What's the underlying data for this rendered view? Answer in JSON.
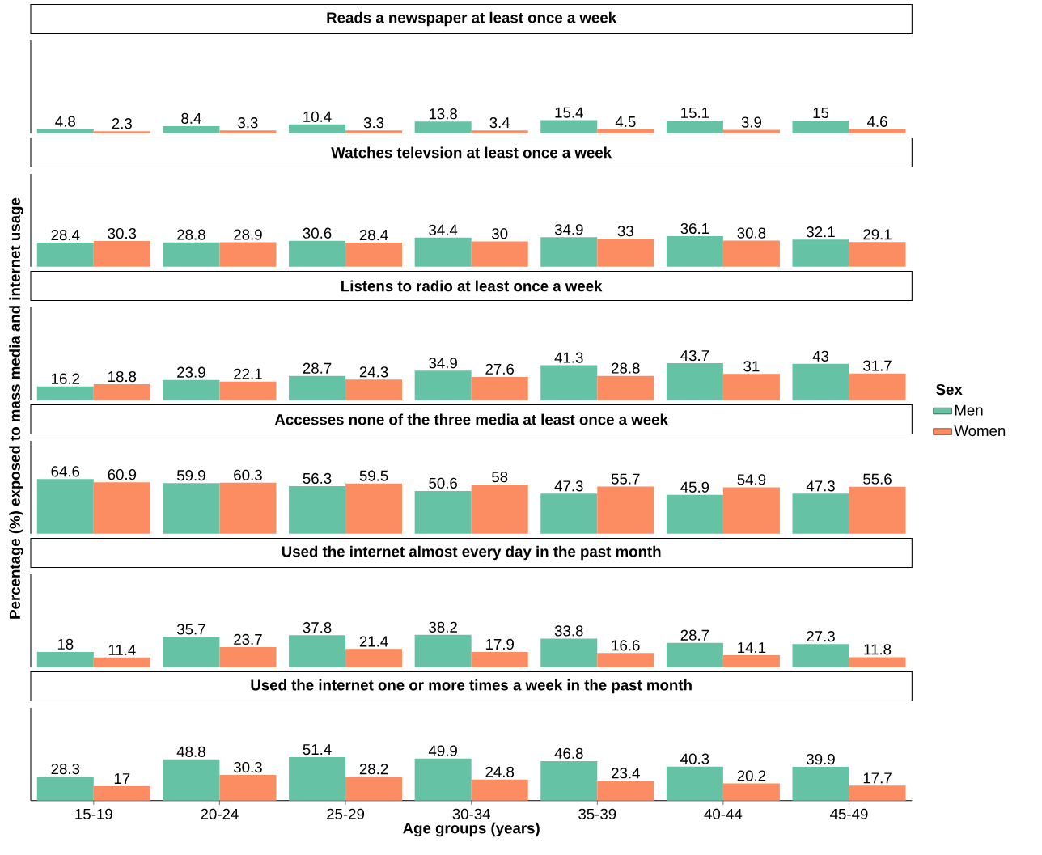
{
  "chart_data": [
    {
      "type": "bar",
      "title": "Reads a newspaper at least once a week",
      "ylabel": "Percentage (%) exposed to mass media and internet usage",
      "categories": [
        null,
        null,
        null,
        null,
        null,
        null,
        null
      ],
      "series": [
        {
          "color": "#66c2a5",
          "values": [
            4.8,
            8.4,
            10.4,
            13.8,
            15.4,
            15.1,
            15
          ]
        },
        {
          "color": "#fc8d62",
          "values": [
            2.3,
            3.3,
            3.3,
            3.4,
            4.5,
            3.9,
            4.6
          ]
        }
      ],
      "ylim": [
        0,
        110
      ],
      "data_labels": true,
      "tick_labels": false
    },
    {
      "type": "bar",
      "title": "Watches televsion at least once a week",
      "categories": [
        null,
        null,
        null,
        null,
        null,
        null,
        null
      ],
      "series": [
        {
          "color": "#66c2a5",
          "values": [
            28.4,
            28.8,
            30.6,
            34.4,
            34.9,
            36.1,
            32.1
          ]
        },
        {
          "color": "#fc8d62",
          "values": [
            30.3,
            28.9,
            28.4,
            30,
            33,
            30.8,
            29.1
          ]
        }
      ],
      "ylim": [
        0,
        110
      ],
      "data_labels": true,
      "tick_labels": false
    },
    {
      "type": "bar",
      "title": "Listens to radio at least once a week",
      "categories": [
        null,
        null,
        null,
        null,
        null,
        null,
        null
      ],
      "series": [
        {
          "color": "#66c2a5",
          "values": [
            16.2,
            23.9,
            28.7,
            34.9,
            41.3,
            43.7,
            43
          ]
        },
        {
          "color": "#fc8d62",
          "values": [
            18.8,
            22.1,
            24.3,
            27.6,
            28.8,
            31,
            31.7
          ]
        }
      ],
      "ylim": [
        0,
        110
      ],
      "data_labels": true,
      "tick_labels": false
    },
    {
      "type": "bar",
      "title": "Accesses none of the three media at least once a week",
      "legend_title": "Sex",
      "legend": "right",
      "categories": [
        null,
        null,
        null,
        null,
        null,
        null,
        null
      ],
      "series": [
        {
          "name": "Men",
          "color": "#66c2a5",
          "values": [
            64.6,
            59.9,
            56.3,
            50.6,
            47.3,
            45.9,
            47.3
          ]
        },
        {
          "name": "Women",
          "color": "#fc8d62",
          "values": [
            60.9,
            60.3,
            59.5,
            58,
            55.7,
            54.9,
            55.6
          ]
        }
      ],
      "ylim": [
        0,
        110
      ],
      "data_labels": true,
      "tick_labels": false
    },
    {
      "type": "bar",
      "title": "Used the internet almost every day in the past month",
      "categories": [
        null,
        null,
        null,
        null,
        null,
        null,
        null
      ],
      "series": [
        {
          "color": "#66c2a5",
          "values": [
            18,
            35.7,
            37.8,
            38.2,
            33.8,
            28.7,
            27.3
          ]
        },
        {
          "color": "#fc8d62",
          "values": [
            11.4,
            23.7,
            21.4,
            17.9,
            16.6,
            14.1,
            11.8
          ]
        }
      ],
      "ylim": [
        0,
        110
      ],
      "data_labels": true,
      "tick_labels": false
    },
    {
      "type": "bar",
      "title": "Used the internet one or more times a week in the past month",
      "xlabel": "Age groups (years)",
      "categories": [
        "15-19",
        "20-24",
        "25-29",
        "30-34",
        "35-39",
        "40-44",
        "45-49"
      ],
      "series": [
        {
          "color": "#66c2a5",
          "values": [
            28.3,
            48.8,
            51.4,
            49.9,
            46.8,
            40.3,
            39.9
          ]
        },
        {
          "color": "#fc8d62",
          "values": [
            17,
            30.3,
            28.2,
            24.8,
            23.4,
            20.2,
            17.7
          ]
        }
      ],
      "ylim": [
        0,
        110
      ],
      "data_labels": true,
      "tick_labels": "x"
    }
  ]
}
